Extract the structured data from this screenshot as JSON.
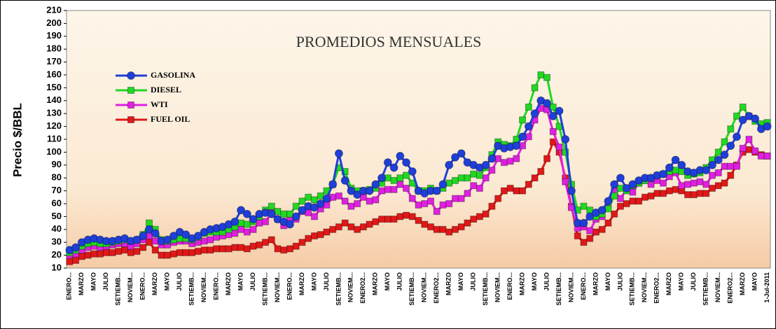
{
  "chart_data": {
    "type": "line",
    "title": "PROMEDIOS MENSUALES",
    "y_label": "Precio $/BBL",
    "ylim": [
      10,
      210
    ],
    "yticks": [
      10,
      20,
      30,
      40,
      50,
      60,
      70,
      80,
      90,
      100,
      110,
      120,
      130,
      140,
      150,
      160,
      170,
      180,
      190,
      200,
      210
    ],
    "grid": false,
    "legend": "upper left",
    "categories": [
      "ENERO...",
      null,
      "MARZO",
      null,
      "MAYO",
      null,
      "JULIO",
      null,
      "SETIEMB...",
      null,
      "NOVIEM...",
      null,
      "ENERO...",
      null,
      "MARZO",
      null,
      "MAYO",
      null,
      "JULIO",
      null,
      "SETIEMB...",
      null,
      "NOVIEM...",
      null,
      "ENERO...",
      null,
      "MARZO",
      null,
      "MAYO",
      null,
      "JULIO",
      null,
      "SETIEMB...",
      null,
      "NOVIEM...",
      null,
      "ENERO...",
      null,
      "MARZO",
      null,
      "MAYO",
      null,
      "JULIO",
      null,
      "SETIEMB...",
      null,
      "NOVIEM...",
      null,
      "ENERO2...",
      null,
      "MARZO",
      null,
      "MAYO",
      null,
      "JULIO",
      null,
      "SETIEMB...",
      null,
      "NOVIEM...",
      null,
      "ENERO2...",
      null,
      "MARZO",
      null,
      "MAYO",
      null,
      "JULIO",
      null,
      "SETIEMB...",
      null,
      "NOVIEM...",
      null,
      "ENERO...",
      null,
      "MARZO",
      null,
      "MAYO",
      null,
      "JULIO",
      null,
      "SETIEMB...",
      null,
      "NOVIEM...",
      null,
      "ENERO...",
      null,
      "MARZO",
      null,
      "MAYO",
      null,
      "JULIO",
      null,
      "SETIEMB...",
      null,
      "NOVIEM...",
      null,
      "ENERO2...",
      null,
      "MARZO",
      null,
      "MAYO",
      null,
      "JULIO",
      null,
      "SETIEMB...",
      null,
      "NOVIEM...",
      null,
      "ENERO2...",
      null,
      "MARZO",
      null,
      "MAYO",
      null,
      "1-Jul-2011"
    ],
    "series": [
      {
        "name": "GASOLINA",
        "color": "#1f3fd8",
        "marker": "circle",
        "values": [
          24,
          26,
          30,
          32,
          33,
          32,
          31,
          31,
          32,
          33,
          31,
          32,
          35,
          40,
          37,
          31,
          32,
          35,
          38,
          36,
          33,
          35,
          38,
          40,
          41,
          42,
          44,
          46,
          55,
          52,
          48,
          52,
          53,
          52,
          48,
          46,
          44,
          50,
          55,
          58,
          57,
          60,
          64,
          75,
          99,
          78,
          70,
          67,
          70,
          70,
          75,
          80,
          92,
          88,
          97,
          92,
          85,
          70,
          68,
          70,
          70,
          75,
          90,
          96,
          99,
          92,
          90,
          88,
          90,
          95,
          105,
          103,
          104,
          105,
          112,
          120,
          130,
          140,
          138,
          128,
          132,
          110,
          70,
          45,
          45,
          50,
          53,
          55,
          62,
          75,
          80,
          72,
          75,
          78,
          80,
          80,
          82,
          83,
          88,
          94,
          90,
          85,
          84,
          86,
          86,
          90,
          94,
          98,
          105,
          112,
          125,
          128,
          126,
          118,
          120
        ]
      },
      {
        "name": "DIESEL",
        "color": "#22d822",
        "marker": "square",
        "values": [
          22,
          24,
          27,
          29,
          30,
          29,
          29,
          30,
          31,
          32,
          31,
          32,
          36,
          45,
          40,
          32,
          31,
          32,
          33,
          33,
          32,
          34,
          37,
          38,
          38,
          38,
          40,
          42,
          45,
          44,
          46,
          50,
          55,
          58,
          54,
          52,
          52,
          58,
          62,
          65,
          63,
          66,
          70,
          75,
          88,
          85,
          72,
          70,
          70,
          71,
          72,
          76,
          80,
          78,
          80,
          82,
          76,
          70,
          70,
          72,
          70,
          72,
          76,
          78,
          80,
          80,
          83,
          82,
          88,
          98,
          108,
          106,
          105,
          110,
          125,
          135,
          150,
          160,
          158,
          135,
          120,
          100,
          75,
          55,
          58,
          55,
          50,
          52,
          56,
          66,
          72,
          70,
          74,
          76,
          78,
          80,
          82,
          83,
          85,
          86,
          85,
          82,
          83,
          84,
          88,
          94,
          100,
          108,
          118,
          128,
          135,
          128,
          124,
          122,
          123
        ]
      },
      {
        "name": "WTI",
        "color": "#e020e0",
        "marker": "square",
        "values": [
          20,
          21,
          24,
          26,
          27,
          26,
          27,
          28,
          29,
          29,
          27,
          29,
          32,
          35,
          31,
          28,
          28,
          30,
          31,
          31,
          29,
          30,
          31,
          32,
          34,
          35,
          36,
          37,
          40,
          38,
          40,
          45,
          46,
          53,
          48,
          43,
          47,
          48,
          54,
          53,
          50,
          56,
          59,
          65,
          66,
          62,
          58,
          60,
          65,
          62,
          63,
          70,
          71,
          71,
          75,
          72,
          64,
          59,
          60,
          62,
          54,
          59,
          60,
          64,
          64,
          68,
          74,
          72,
          80,
          86,
          95,
          92,
          93,
          95,
          105,
          112,
          125,
          134,
          133,
          116,
          104,
          77,
          57,
          41,
          42,
          39,
          48,
          50,
          59,
          70,
          64,
          71,
          69,
          76,
          78,
          75,
          78,
          76,
          81,
          84,
          74,
          75,
          76,
          77,
          75,
          82,
          84,
          89,
          89,
          89,
          103,
          110,
          101,
          97,
          97
        ]
      },
      {
        "name": "FUEL OIL",
        "color": "#e01818",
        "marker": "square",
        "values": [
          15,
          16,
          19,
          20,
          21,
          21,
          22,
          22,
          23,
          24,
          22,
          23,
          26,
          30,
          24,
          20,
          20,
          21,
          22,
          22,
          22,
          23,
          24,
          24,
          25,
          25,
          25,
          26,
          26,
          25,
          27,
          28,
          30,
          32,
          25,
          24,
          25,
          27,
          30,
          33,
          35,
          36,
          38,
          40,
          42,
          45,
          42,
          40,
          42,
          44,
          46,
          48,
          48,
          48,
          50,
          51,
          50,
          47,
          44,
          42,
          40,
          40,
          38,
          40,
          42,
          45,
          48,
          50,
          52,
          58,
          64,
          70,
          72,
          70,
          70,
          75,
          80,
          85,
          95,
          108,
          100,
          80,
          58,
          35,
          30,
          33,
          38,
          40,
          45,
          52,
          58,
          60,
          62,
          62,
          65,
          66,
          68,
          68,
          70,
          71,
          70,
          67,
          67,
          68,
          68,
          72,
          74,
          76,
          82,
          90,
          100,
          102,
          100,
          98,
          97
        ]
      }
    ]
  }
}
